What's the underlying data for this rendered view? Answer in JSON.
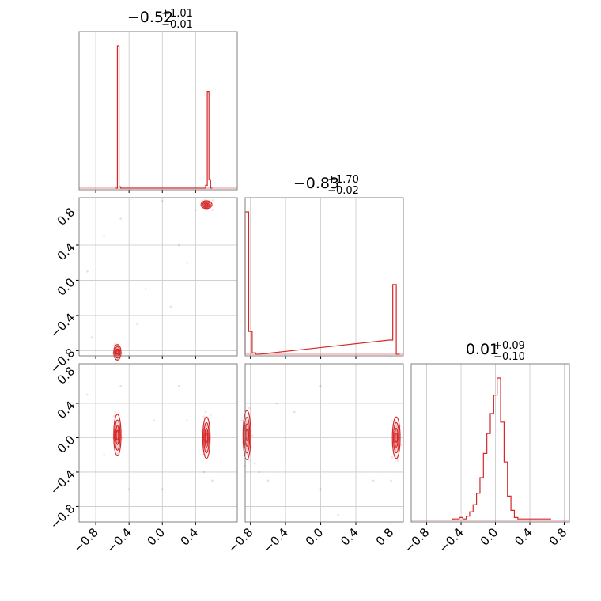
{
  "colors": {
    "line": "#d62728",
    "grid": "#c8c8c8",
    "frame": "#808080"
  },
  "chart_data": {
    "type": "corner",
    "grid": true,
    "panels": [
      {
        "id": "hist-0",
        "type": "histogram_step",
        "title": {
          "main": "−0.52",
          "sup": "+1.01",
          "sub": "−0.01"
        },
        "xlim": [
          -1.0,
          0.9
        ],
        "xticks": [
          -0.8,
          -0.4,
          0.0,
          0.4
        ],
        "bins": [
          {
            "x": -0.56,
            "h": 0.0
          },
          {
            "x": -0.54,
            "h": 1.0
          },
          {
            "x": -0.52,
            "h": 0.01
          },
          {
            "x": -0.5,
            "h": 0.0
          },
          {
            "x": 0.5,
            "h": 0.0
          },
          {
            "x": 0.52,
            "h": 0.02
          },
          {
            "x": 0.54,
            "h": 0.68
          },
          {
            "x": 0.56,
            "h": 0.06
          },
          {
            "x": 0.58,
            "h": 0.0
          }
        ],
        "bin_width": 0.02
      },
      {
        "id": "hist-1",
        "type": "histogram_step",
        "title": {
          "main": "−0.83",
          "sup": "+1.70",
          "sub": "−0.02"
        },
        "xlim": [
          -0.86,
          0.94
        ],
        "xticks": [
          -0.8,
          -0.4,
          0.0,
          0.4,
          0.8
        ],
        "bins": [
          {
            "x": -0.86,
            "h": 1.0
          },
          {
            "x": -0.82,
            "h": 0.16
          },
          {
            "x": -0.78,
            "h": 0.01
          },
          {
            "x": -0.74,
            "h": 0.0
          },
          {
            "x": 0.78,
            "h": 0.1
          },
          {
            "x": 0.82,
            "h": 0.49
          },
          {
            "x": 0.86,
            "h": 0.0
          }
        ],
        "bin_width": 0.04
      },
      {
        "id": "hist-2",
        "type": "histogram_step",
        "title": {
          "main": "0.01",
          "sup": "+0.09",
          "sub": "−0.10"
        },
        "xlim": [
          -0.98,
          0.86
        ],
        "xticks": [
          -0.8,
          -0.4,
          0.0,
          0.4,
          0.8
        ],
        "bins": [
          {
            "x": -0.5,
            "h": 0.01
          },
          {
            "x": -0.46,
            "h": 0.01
          },
          {
            "x": -0.42,
            "h": 0.02
          },
          {
            "x": -0.38,
            "h": 0.01
          },
          {
            "x": -0.34,
            "h": 0.03
          },
          {
            "x": -0.3,
            "h": 0.06
          },
          {
            "x": -0.26,
            "h": 0.11
          },
          {
            "x": -0.22,
            "h": 0.19
          },
          {
            "x": -0.18,
            "h": 0.3
          },
          {
            "x": -0.14,
            "h": 0.47
          },
          {
            "x": -0.1,
            "h": 0.61
          },
          {
            "x": -0.06,
            "h": 0.75
          },
          {
            "x": -0.02,
            "h": 0.88
          },
          {
            "x": 0.02,
            "h": 1.0
          },
          {
            "x": 0.06,
            "h": 0.69
          },
          {
            "x": 0.1,
            "h": 0.41
          },
          {
            "x": 0.14,
            "h": 0.17
          },
          {
            "x": 0.18,
            "h": 0.07
          },
          {
            "x": 0.22,
            "h": 0.02
          },
          {
            "x": 0.26,
            "h": 0.01
          },
          {
            "x": 0.4,
            "h": 0.01
          },
          {
            "x": 0.44,
            "h": 0.01
          },
          {
            "x": 0.6,
            "h": 0.01
          }
        ],
        "bin_width": 0.04
      },
      {
        "id": "scatter-1-0",
        "type": "scatter_contour",
        "xlim": [
          -1.0,
          0.9
        ],
        "ylim": [
          -0.86,
          0.94
        ],
        "xticks": [
          -0.8,
          -0.4,
          0.0,
          0.4
        ],
        "yticks": [
          -0.8,
          -0.4,
          0.0,
          0.4,
          0.8
        ],
        "clusters": [
          {
            "cx": -0.54,
            "cy": -0.82,
            "sx": 0.02,
            "sy": 0.04
          },
          {
            "cx": 0.53,
            "cy": 0.86,
            "sx": 0.03,
            "sy": 0.02
          }
        ],
        "points": [
          [
            -0.85,
            -0.65
          ],
          [
            -0.5,
            0.7
          ],
          [
            -0.2,
            -0.1
          ],
          [
            0.0,
            0.9
          ],
          [
            0.2,
            0.4
          ],
          [
            -0.7,
            0.5
          ],
          [
            0.4,
            0.8
          ],
          [
            -0.3,
            -0.5
          ],
          [
            0.1,
            -0.3
          ],
          [
            0.6,
            0.8
          ],
          [
            -0.9,
            0.1
          ],
          [
            0.3,
            0.2
          ]
        ]
      },
      {
        "id": "scatter-2-0",
        "type": "scatter_contour",
        "xlim": [
          -1.0,
          0.9
        ],
        "ylim": [
          -0.98,
          0.86
        ],
        "xticks": [
          -0.8,
          -0.4,
          0.0,
          0.4
        ],
        "yticks": [
          -0.8,
          -0.4,
          0.0,
          0.4,
          0.8
        ],
        "clusters": [
          {
            "cx": -0.54,
            "cy": 0.03,
            "sx": 0.02,
            "sy": 0.11
          },
          {
            "cx": 0.53,
            "cy": 0.0,
            "sx": 0.02,
            "sy": 0.11
          }
        ],
        "points": [
          [
            -0.9,
            0.5
          ],
          [
            -0.1,
            0.2
          ],
          [
            0.3,
            0.2
          ],
          [
            -0.4,
            -0.6
          ],
          [
            0.6,
            -0.5
          ],
          [
            -0.5,
            0.6
          ],
          [
            0.5,
            -0.4
          ],
          [
            0.0,
            -0.6
          ],
          [
            0.2,
            0.6
          ],
          [
            -0.7,
            -0.2
          ]
        ]
      },
      {
        "id": "scatter-2-1",
        "type": "scatter_contour",
        "xlim": [
          -0.86,
          0.94
        ],
        "ylim": [
          -0.98,
          0.86
        ],
        "xticks": [
          -0.8,
          -0.4,
          0.0,
          0.4,
          0.8
        ],
        "yticks": [
          -0.8,
          -0.4,
          0.0,
          0.4,
          0.8
        ],
        "clusters": [
          {
            "cx": -0.84,
            "cy": 0.03,
            "sx": 0.02,
            "sy": 0.13
          },
          {
            "cx": 0.86,
            "cy": 0.0,
            "sx": 0.02,
            "sy": 0.11
          }
        ],
        "points": [
          [
            -0.7,
            -0.4
          ],
          [
            -0.6,
            -0.5
          ],
          [
            -0.5,
            0.4
          ],
          [
            0.0,
            0.6
          ],
          [
            0.0,
            -0.6
          ],
          [
            0.8,
            -0.5
          ],
          [
            0.6,
            -0.5
          ],
          [
            -0.3,
            0.3
          ],
          [
            0.2,
            -0.9
          ],
          [
            -0.75,
            -0.3
          ]
        ]
      }
    ],
    "bottom_tick_labels": [
      "−0.8",
      "−0.4",
      "0.0",
      "0.4",
      "0.8"
    ],
    "left_tick_labels": [
      "−0.8",
      "−0.4",
      "0.0",
      "0.4",
      "0.8"
    ]
  }
}
